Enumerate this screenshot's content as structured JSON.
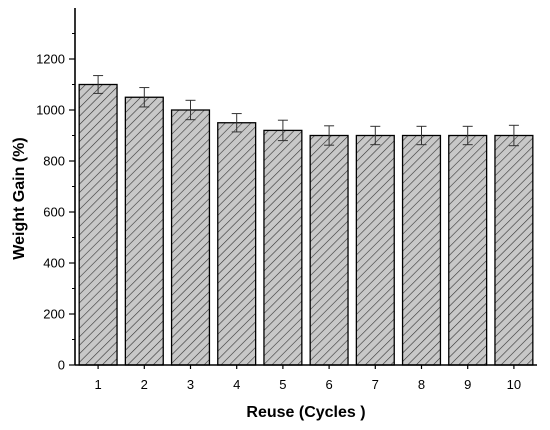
{
  "chart_data": {
    "type": "bar",
    "title": "",
    "xlabel": "Reuse (Cycles )",
    "ylabel": "Weight Gain (%)",
    "categories": [
      "1",
      "2",
      "3",
      "4",
      "5",
      "6",
      "7",
      "8",
      "9",
      "10"
    ],
    "values": [
      1100,
      1050,
      1000,
      950,
      920,
      900,
      900,
      900,
      900,
      900
    ],
    "error": [
      35,
      38,
      38,
      36,
      40,
      38,
      36,
      36,
      36,
      40
    ],
    "ylim": [
      0,
      1400
    ],
    "yticks": [
      0,
      200,
      400,
      600,
      800,
      1000,
      1200
    ],
    "grid": false,
    "bar_fill": "#c8c8c8",
    "hatch_color": "#333333",
    "edge_color": "#000000"
  }
}
